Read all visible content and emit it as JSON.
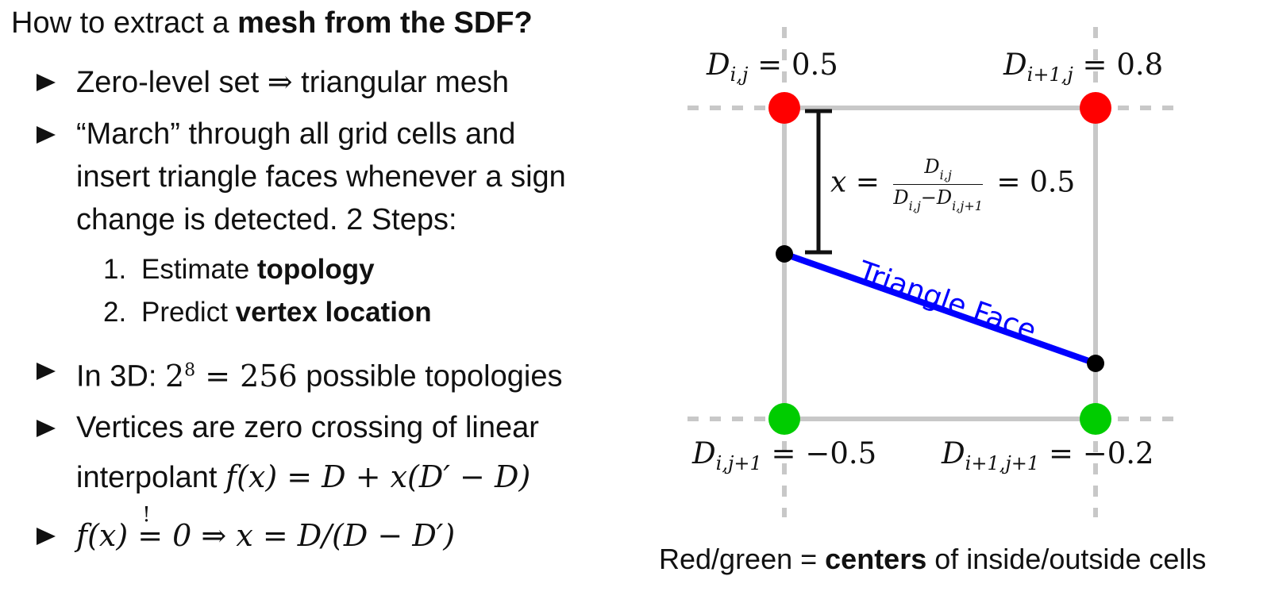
{
  "title": {
    "prefix": "How to extract a ",
    "bold": "mesh from the SDF?"
  },
  "bullets": {
    "b1": {
      "pre": "Zero-level set ",
      "arrow": "⇒",
      "post": " triangular mesh"
    },
    "b2": {
      "line1": "“March” through all grid cells and",
      "line2": "insert triangle faces whenever a sign",
      "line3": "change is detected. 2 Steps:"
    },
    "steps": [
      {
        "num": "1.",
        "pre": "Estimate ",
        "bold": "topology"
      },
      {
        "num": "2.",
        "pre": "Predict ",
        "bold": "vertex location"
      }
    ],
    "b3": {
      "pre": "In 3D: ",
      "base": "2",
      "exp": "8",
      "eq": " = 256",
      "post": " possible topologies"
    },
    "b4": {
      "line1": "Vertices are zero crossing of linear",
      "line2_pre": "interpolant ",
      "formula": "f(x) = D + x(D′ − D)"
    },
    "b5": {
      "lhs": "f(x)",
      "bang": "!",
      "eq": "=",
      "rhs": " 0 ⇒ x = D/(D − D′)"
    }
  },
  "diagram": {
    "corner_tl": {
      "var": "D",
      "sub": "i,j",
      "eq": " = 0.5"
    },
    "corner_tr": {
      "var": "D",
      "sub": "i+1,j",
      "eq": " = 0.8"
    },
    "corner_bl": {
      "var": "D",
      "sub": "i,j+1",
      "eq": " = −0.5"
    },
    "corner_br": {
      "var": "D",
      "sub": "i+1,j+1",
      "eq": " = −0.2"
    },
    "formula": {
      "x": "x",
      "eq1": " =",
      "num_var": "D",
      "num_sub": "i,j",
      "den_a": "D",
      "den_a_sub": "i,j",
      "minus": "−",
      "den_b": "D",
      "den_b_sub": "i,j+1",
      "eq2": "= 0.5"
    },
    "face_label": "Triangle Face",
    "colors": {
      "inside": "#ff0000",
      "outside": "#00cc00",
      "face": "#0000ff",
      "grid": "#c8c8c8"
    }
  },
  "caption": {
    "pre": "Red/green = ",
    "bold": "centers",
    "post": " of inside/outside cells"
  }
}
